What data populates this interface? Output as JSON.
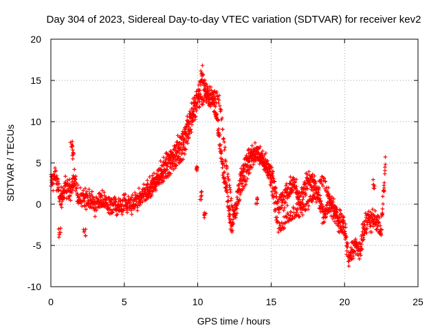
{
  "chart_data": {
    "type": "scatter",
    "title": "Day 304 of 2023, Sidereal Day-to-day VTEC variation (SDTVAR) for receiver kev2",
    "xlabel": "GPS time / hours",
    "ylabel": "SDTVAR / TECUs",
    "xlim": [
      0,
      25
    ],
    "ylim": [
      -10,
      20
    ],
    "xticks": [
      0,
      5,
      10,
      15,
      20,
      25
    ],
    "yticks": [
      -10,
      -5,
      0,
      5,
      10,
      15,
      20
    ],
    "grid": true,
    "marker": "plus",
    "color": "#ff0000",
    "series": [
      {
        "name": "SDTVAR",
        "trend": [
          [
            0.0,
            2.5
          ],
          [
            0.3,
            3.5
          ],
          [
            0.6,
            1.5
          ],
          [
            0.8,
            0.5
          ],
          [
            1.0,
            2.0
          ],
          [
            1.3,
            1.5
          ],
          [
            1.6,
            3.0
          ],
          [
            1.8,
            1.0
          ],
          [
            2.0,
            0.5
          ],
          [
            2.5,
            0.5
          ],
          [
            3.0,
            0.0
          ],
          [
            3.5,
            0.5
          ],
          [
            4.0,
            0.0
          ],
          [
            4.5,
            0.0
          ],
          [
            5.0,
            0.0
          ],
          [
            5.5,
            0.0
          ],
          [
            6.0,
            0.5
          ],
          [
            6.5,
            1.5
          ],
          [
            7.0,
            2.5
          ],
          [
            7.5,
            4.0
          ],
          [
            8.0,
            5.5
          ],
          [
            8.5,
            6.5
          ],
          [
            9.0,
            8.0
          ],
          [
            9.5,
            10.5
          ],
          [
            10.0,
            13.0
          ],
          [
            10.3,
            15.5
          ],
          [
            10.6,
            13.5
          ],
          [
            11.0,
            12.5
          ],
          [
            11.3,
            10.5
          ],
          [
            11.6,
            6.0
          ],
          [
            12.0,
            1.0
          ],
          [
            12.3,
            -3.0
          ],
          [
            12.6,
            0.0
          ],
          [
            13.0,
            4.0
          ],
          [
            13.5,
            6.0
          ],
          [
            14.0,
            6.0
          ],
          [
            14.5,
            5.0
          ],
          [
            15.0,
            4.0
          ],
          [
            15.5,
            0.0
          ],
          [
            16.0,
            1.0
          ],
          [
            16.5,
            2.5
          ],
          [
            17.0,
            0.5
          ],
          [
            17.5,
            3.0
          ],
          [
            18.0,
            2.0
          ],
          [
            18.5,
            -1.0
          ],
          [
            19.0,
            0.0
          ],
          [
            19.5,
            -2.0
          ],
          [
            20.0,
            -3.0
          ],
          [
            20.3,
            -7.0
          ],
          [
            20.7,
            -5.0
          ],
          [
            21.0,
            -6.0
          ],
          [
            21.5,
            -2.0
          ],
          [
            22.0,
            -2.0
          ],
          [
            22.5,
            -3.0
          ],
          [
            22.8,
            5.5
          ]
        ],
        "secondary": [
          [
            6.5,
            1.0
          ],
          [
            7.0,
            2.0
          ],
          [
            7.5,
            3.0
          ],
          [
            8.0,
            4.0
          ],
          [
            8.5,
            5.0
          ],
          [
            9.0,
            6.0
          ],
          [
            9.5,
            9.0
          ],
          [
            10.0,
            12.0
          ],
          [
            10.5,
            13.0
          ],
          [
            11.0,
            13.5
          ],
          [
            11.5,
            12.5
          ],
          [
            12.0,
            4.0
          ],
          [
            12.5,
            -2.0
          ],
          [
            13.0,
            2.0
          ],
          [
            13.5,
            4.0
          ],
          [
            14.0,
            7.0
          ],
          [
            14.5,
            5.0
          ],
          [
            15.0,
            2.5
          ],
          [
            15.5,
            -3.0
          ],
          [
            16.0,
            -2.0
          ],
          [
            16.5,
            -1.0
          ],
          [
            17.0,
            -1.0
          ],
          [
            17.5,
            0.0
          ],
          [
            18.0,
            1.0
          ],
          [
            18.5,
            3.0
          ],
          [
            19.0,
            1.0
          ],
          [
            19.5,
            -1.0
          ],
          [
            20.0,
            -2.0
          ]
        ],
        "isolated": [
          [
            9.9,
            4.5
          ],
          [
            10.2,
            1.0
          ],
          [
            10.5,
            -1.5
          ],
          [
            14.0,
            0.5
          ],
          [
            2.3,
            -3.3
          ],
          [
            1.4,
            7.5
          ],
          [
            1.5,
            6.0
          ],
          [
            0.6,
            -3.5
          ],
          [
            22.0,
            2.5
          ],
          [
            21.3,
            -2.5
          ]
        ]
      }
    ]
  }
}
